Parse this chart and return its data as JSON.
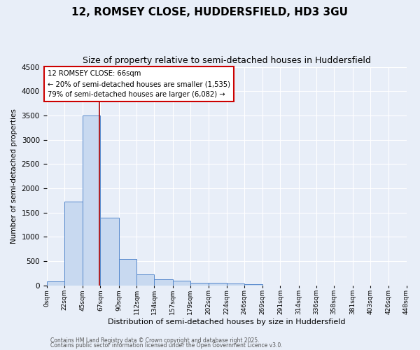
{
  "title1": "12, ROMSEY CLOSE, HUDDERSFIELD, HD3 3GU",
  "title2": "Size of property relative to semi-detached houses in Huddersfield",
  "xlabel": "Distribution of semi-detached houses by size in Huddersfield",
  "ylabel": "Number of semi-detached properties",
  "bin_labels": [
    "0sqm",
    "22sqm",
    "45sqm",
    "67sqm",
    "90sqm",
    "112sqm",
    "134sqm",
    "157sqm",
    "179sqm",
    "202sqm",
    "224sqm",
    "246sqm",
    "269sqm",
    "291sqm",
    "314sqm",
    "336sqm",
    "358sqm",
    "381sqm",
    "403sqm",
    "426sqm",
    "448sqm"
  ],
  "bar_values": [
    75,
    1720,
    3500,
    1390,
    540,
    230,
    120,
    90,
    55,
    45,
    30,
    20,
    0,
    0,
    0,
    0,
    0,
    0,
    0,
    0
  ],
  "bar_color": "#c8d9f0",
  "bar_edge_color": "#5588cc",
  "vline_x": 66,
  "vline_color": "#aa0000",
  "annotation_title": "12 ROMSEY CLOSE: 66sqm",
  "annotation_line1": "← 20% of semi-detached houses are smaller (1,535)",
  "annotation_line2": "79% of semi-detached houses are larger (6,082) →",
  "annotation_box_color": "#ffffff",
  "annotation_box_edge": "#cc0000",
  "ylim": [
    0,
    4500
  ],
  "yticks": [
    0,
    500,
    1000,
    1500,
    2000,
    2500,
    3000,
    3500,
    4000,
    4500
  ],
  "bin_edges": [
    0,
    22,
    45,
    67,
    90,
    112,
    134,
    157,
    179,
    202,
    224,
    246,
    269,
    291,
    314,
    336,
    358,
    381,
    403,
    426,
    448
  ],
  "footer1": "Contains HM Land Registry data © Crown copyright and database right 2025.",
  "footer2": "Contains public sector information licensed under the Open Government Licence v3.0.",
  "bg_color": "#e8eef8",
  "grid_color": "#ffffff",
  "title1_fontsize": 11,
  "title2_fontsize": 9
}
